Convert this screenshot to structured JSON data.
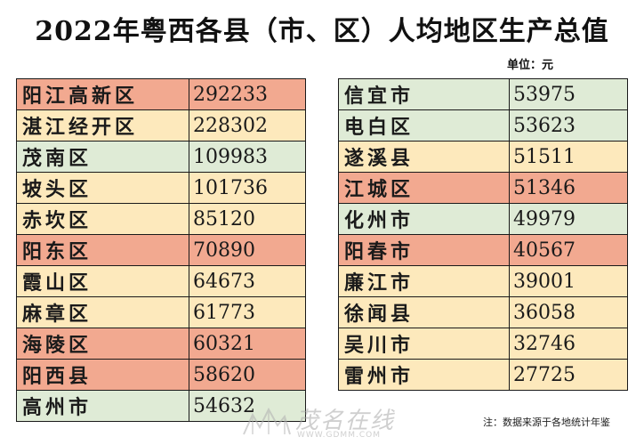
{
  "title": "2022年粤西各县（市、区）人均地区生产总值",
  "unit": "单位：元",
  "footnote": "注：数据来源于各地统计年鉴",
  "watermark": {
    "text": "茂名在线",
    "url": "WWW.GDMM.COM"
  },
  "colors": {
    "red": "#f2a990",
    "yellow": "#fde9bc",
    "green": "#dfebd6"
  },
  "table_left": {
    "rows": [
      {
        "name": "阳江高新区",
        "value": "292233",
        "color": "red"
      },
      {
        "name": "湛江经开区",
        "value": "228302",
        "color": "yellow"
      },
      {
        "name": "茂南区",
        "value": "109983",
        "color": "green"
      },
      {
        "name": "坡头区",
        "value": "101736",
        "color": "yellow"
      },
      {
        "name": "赤坎区",
        "value": "85120",
        "color": "yellow"
      },
      {
        "name": "阳东区",
        "value": "70890",
        "color": "red"
      },
      {
        "name": "霞山区",
        "value": "64673",
        "color": "yellow"
      },
      {
        "name": "麻章区",
        "value": "61773",
        "color": "yellow"
      },
      {
        "name": "海陵区",
        "value": "60321",
        "color": "red"
      },
      {
        "name": "阳西县",
        "value": "58620",
        "color": "red"
      },
      {
        "name": "高州市",
        "value": "54632",
        "color": "green"
      }
    ]
  },
  "table_right": {
    "rows": [
      {
        "name": "信宜市",
        "value": "53975",
        "color": "green"
      },
      {
        "name": "电白区",
        "value": "53623",
        "color": "green"
      },
      {
        "name": "遂溪县",
        "value": "51511",
        "color": "yellow"
      },
      {
        "name": "江城区",
        "value": "51346",
        "color": "red"
      },
      {
        "name": "化州市",
        "value": "49979",
        "color": "green"
      },
      {
        "name": "阳春市",
        "value": "40567",
        "color": "red"
      },
      {
        "name": "廉江市",
        "value": "39001",
        "color": "yellow"
      },
      {
        "name": "徐闻县",
        "value": "36058",
        "color": "yellow"
      },
      {
        "name": "吴川市",
        "value": "32746",
        "color": "yellow"
      },
      {
        "name": "雷州市",
        "value": "27725",
        "color": "yellow"
      }
    ]
  }
}
